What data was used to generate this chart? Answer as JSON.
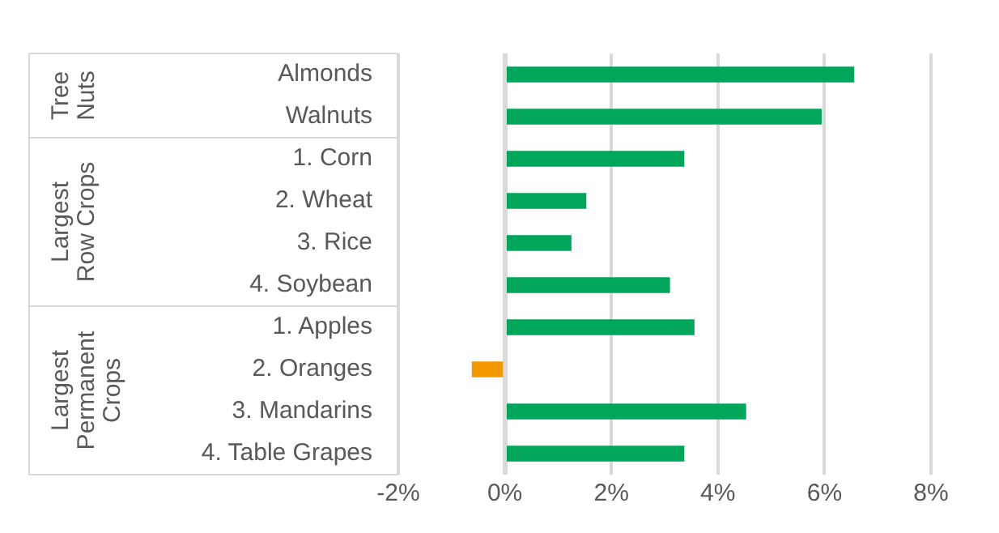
{
  "chart_data": {
    "type": "bar",
    "orientation": "horizontal",
    "categories": [
      "Almonds",
      "Walnuts",
      "1. Corn",
      "2. Wheat",
      "3. Rice",
      "4. Soybean",
      "1. Apples",
      "2. Oranges",
      "3. Mandarins",
      "4. Table Grapes"
    ],
    "values": [
      6.55,
      5.94,
      3.36,
      1.52,
      1.24,
      3.09,
      3.55,
      -0.61,
      4.52,
      3.36
    ],
    "colors": [
      "#00a65a",
      "#00a65a",
      "#00a65a",
      "#00a65a",
      "#00a65a",
      "#00a65a",
      "#00a65a",
      "#f39800",
      "#00a65a",
      "#00a65a"
    ],
    "xlim": [
      -2,
      8
    ],
    "xticks": [
      {
        "value": -2,
        "label": "-2%"
      },
      {
        "value": 0,
        "label": "0%"
      },
      {
        "value": 2,
        "label": "2%"
      },
      {
        "value": 4,
        "label": "4%"
      },
      {
        "value": 6,
        "label": "6%"
      },
      {
        "value": 8,
        "label": "8%"
      }
    ],
    "grid": "x",
    "annotations": [
      "Tree Nuts",
      "Largest Row Crops",
      "Largest Permanent Crops"
    ]
  }
}
